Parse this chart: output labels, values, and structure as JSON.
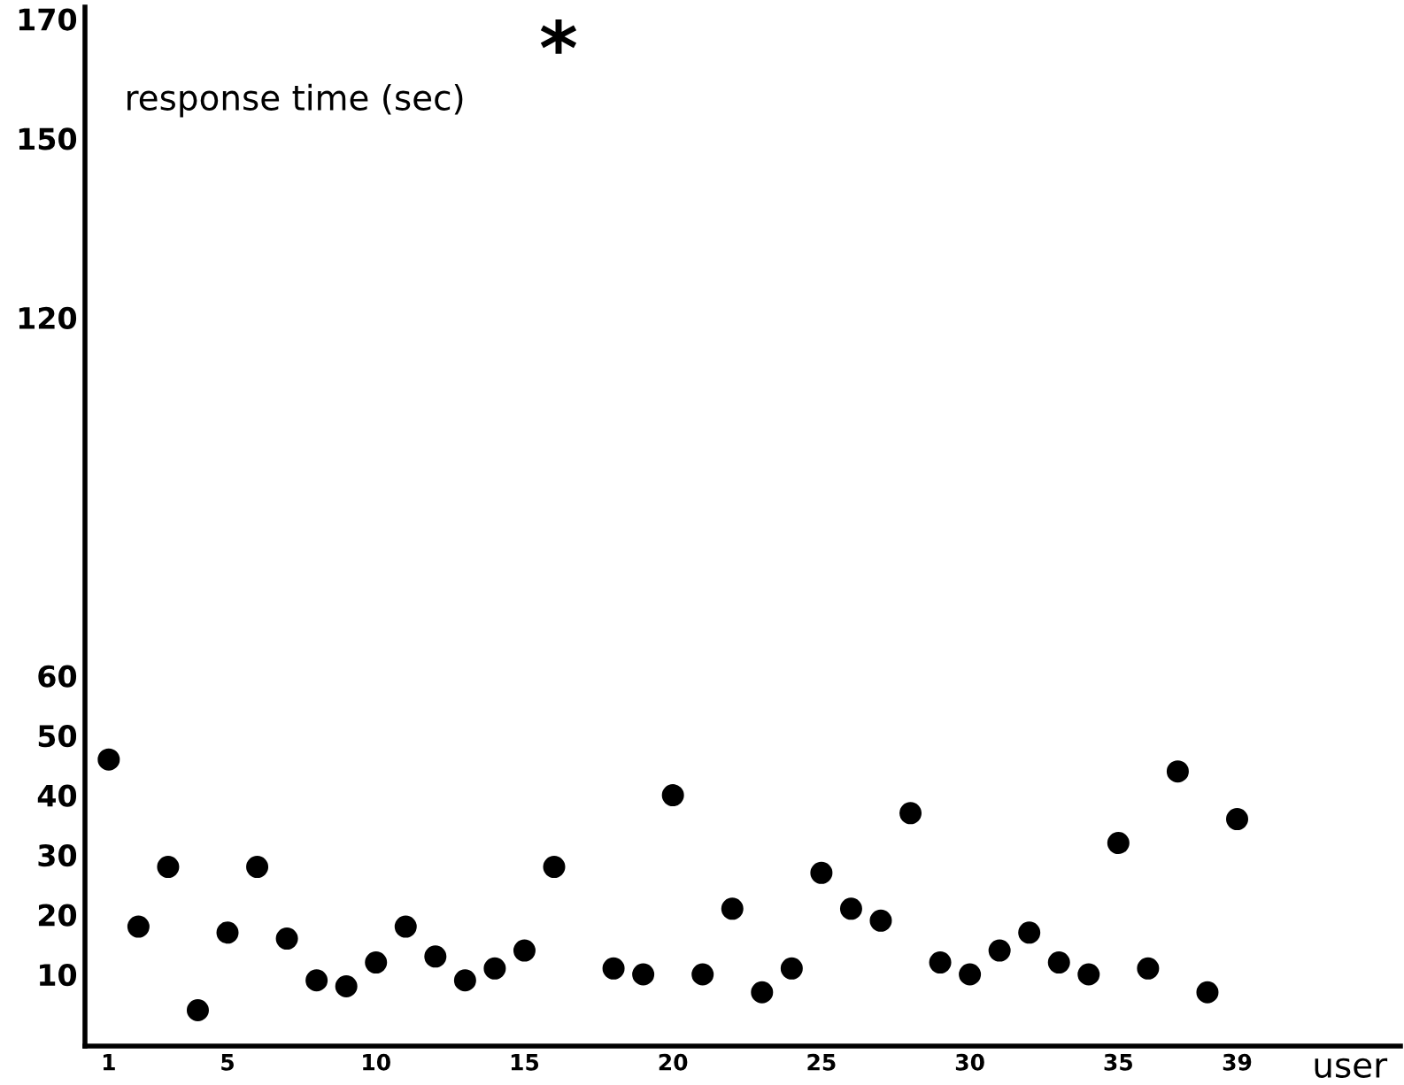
{
  "chart_data": {
    "type": "scatter",
    "xlabel": "user",
    "ylabel": "response time (sec)",
    "x": [
      1,
      2,
      3,
      4,
      5,
      6,
      7,
      8,
      9,
      10,
      11,
      12,
      13,
      14,
      15,
      16,
      17,
      18,
      19,
      20,
      21,
      22,
      23,
      24,
      25,
      26,
      27,
      28,
      29,
      30,
      31,
      32,
      33,
      34,
      35,
      36,
      37,
      38,
      39
    ],
    "series": [
      {
        "color": "#000000",
        "values": [
          46,
          18,
          28,
          4,
          17,
          28,
          16,
          9,
          8,
          12,
          18,
          13,
          9,
          11,
          14,
          28,
          null,
          11,
          10,
          40,
          10,
          21,
          7,
          11,
          27,
          21,
          19,
          37,
          12,
          10,
          14,
          17,
          12,
          10,
          32,
          11,
          44,
          7,
          36
        ]
      }
    ],
    "annotations": [
      "*"
    ],
    "xlim": [
      0.2,
      44.5
    ],
    "xticks": [
      1,
      5,
      10,
      15,
      20,
      25,
      30,
      35,
      39
    ],
    "ylim": [
      -2,
      172
    ],
    "yticks": [
      10,
      20,
      30,
      40,
      50,
      60,
      120,
      150,
      170
    ],
    "marker": "circle",
    "grid": false,
    "legend": false
  }
}
